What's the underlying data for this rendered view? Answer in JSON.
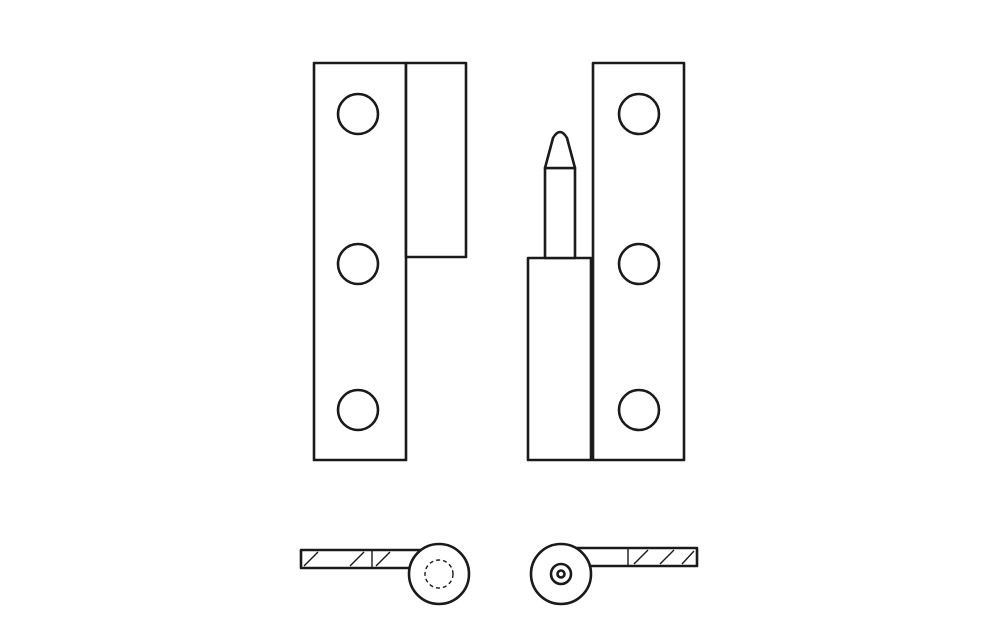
{
  "drawing": {
    "stroke_color": "#1a1a1a",
    "fill_color": "#ffffff",
    "views": [
      {
        "name": "front-view",
        "parts": [
          "left-leaf-with-socket-knuckle",
          "right-leaf-with-pin-knuckle"
        ]
      },
      {
        "name": "top-view",
        "parts": [
          "left-leaf-end-view-with-socket",
          "right-leaf-end-view-with-pin"
        ]
      }
    ],
    "holes_per_leaf": 3
  }
}
